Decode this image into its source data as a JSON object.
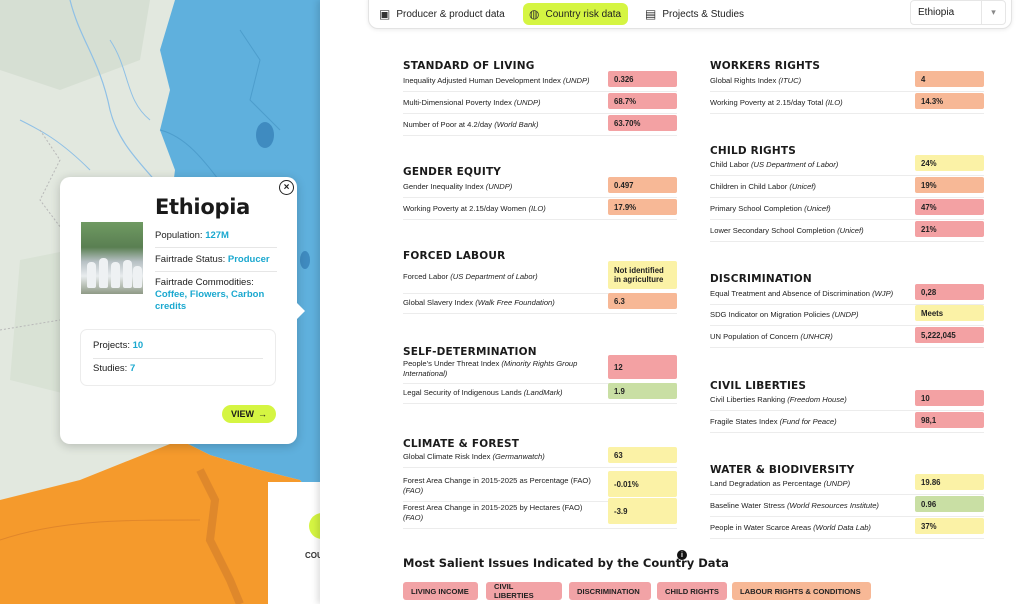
{
  "map": {
    "bottom_button_label": "COU"
  },
  "popup": {
    "country": "Ethiopia",
    "population_label": "Population:",
    "population_value": "127M",
    "status_label": "Fairtrade Status:",
    "status_value": "Producer",
    "commodities_label": "Fairtrade Commodities:",
    "commodities_value": "Coffee, Flowers, Carbon credits",
    "projects_label": "Projects:",
    "projects_value": "10",
    "studies_label": "Studies:",
    "studies_value": "7",
    "view_label": "VIEW",
    "close_icon": "close-icon"
  },
  "tabs": [
    {
      "label": "Producer & product data",
      "icon": "box-icon"
    },
    {
      "label": "Country risk data",
      "icon": "globe-icon",
      "active": true
    },
    {
      "label": "Projects & Studies",
      "icon": "clipboard-icon"
    }
  ],
  "country_select": {
    "value": "Ethiopia"
  },
  "left_sections": [
    {
      "title": "STANDARD OF LIVING",
      "rows": [
        {
          "label": "Inequality Adjusted Human Development Index",
          "source": "(UNDP)",
          "value": "0.326",
          "color": "red"
        },
        {
          "label": "Multi-Dimensional Poverty Index",
          "source": "(UNDP)",
          "value": "68.7%",
          "color": "red"
        },
        {
          "label": "Number of Poor at 4.2/day",
          "source": "(World Bank)",
          "value": "63.70%",
          "color": "red"
        }
      ]
    },
    {
      "title": "GENDER EQUITY",
      "rows": [
        {
          "label": "Gender Inequality Index",
          "source": "(UNDP)",
          "value": "0.497",
          "color": "orange"
        },
        {
          "label": "Working Poverty at 2.15/day Women",
          "source": "(ILO)",
          "value": "17.9%",
          "color": "orange"
        }
      ]
    },
    {
      "title": "FORCED LABOUR",
      "rows": [
        {
          "label": "Forced Labor",
          "source": "(US Department of Labor)",
          "value": "Not identified in agriculture",
          "color": "yellow"
        },
        {
          "label": "Global Slavery Index",
          "source": "(Walk Free Foundation)",
          "value": "6.3",
          "color": "orange"
        }
      ]
    },
    {
      "title": "SELF-DETERMINATION",
      "rows": [
        {
          "label": "People's Under Threat Index",
          "source": "(Minority Rights Group International)",
          "value": "12",
          "color": "red"
        },
        {
          "label": "Legal Security of Indigenous Lands",
          "source": "(LandMark)",
          "value": "1.9",
          "color": "green"
        }
      ]
    },
    {
      "title": "CLIMATE & FOREST",
      "rows": [
        {
          "label": "Global Climate Risk Index",
          "source": "(Germanwatch)",
          "value": "63",
          "color": "yellow"
        },
        {
          "label": "Forest Area Change in 2015-2025 as Percentage (FAO)",
          "source": "(FAO)",
          "value": "-0.01%",
          "color": "yellow"
        },
        {
          "label": "Forest Area Change in 2015-2025 by Hectares (FAO)",
          "source": "(FAO)",
          "value": "-3.9",
          "color": "yellow"
        }
      ]
    }
  ],
  "right_sections": [
    {
      "title": "WORKERS RIGHTS",
      "rows": [
        {
          "label": "Global Rights Index",
          "source": "(ITUC)",
          "value": "4",
          "color": "orange"
        },
        {
          "label": "Working Poverty at 2.15/day Total",
          "source": "(ILO)",
          "value": "14.3%",
          "color": "orange"
        }
      ]
    },
    {
      "title": "CHILD RIGHTS",
      "rows": [
        {
          "label": "Child Labor",
          "source": "(US Department of Labor)",
          "value": "24%",
          "color": "yellow"
        },
        {
          "label": "Children in Child Labor",
          "source": "(Unicef)",
          "value": "19%",
          "color": "orange"
        },
        {
          "label": "Primary School Completion",
          "source": "(Unicef)",
          "value": "47%",
          "color": "red"
        },
        {
          "label": "Lower Secondary School Completion",
          "source": "(Unicef)",
          "value": "21%",
          "color": "red"
        }
      ]
    },
    {
      "title": "DISCRIMINATION",
      "rows": [
        {
          "label": "Equal Treatment and Absence of Discrimination",
          "source": "(WJP)",
          "value": "0,28",
          "color": "red"
        },
        {
          "label": "SDG Indicator on Migration Policies",
          "source": "(UNDP)",
          "value": "Meets",
          "color": "yellow"
        },
        {
          "label": "UN Population of Concern",
          "source": "(UNHCR)",
          "value": "5,222,045",
          "color": "red"
        }
      ]
    },
    {
      "title": "CIVIL LIBERTIES",
      "rows": [
        {
          "label": "Civil Liberties Ranking",
          "source": "(Freedom House)",
          "value": "10",
          "color": "red"
        },
        {
          "label": "Fragile States Index",
          "source": "(Fund for Peace)",
          "value": "98,1",
          "color": "red"
        }
      ]
    },
    {
      "title": "WATER & BIODIVERSITY",
      "rows": [
        {
          "label": "Land Degradation as Percentage",
          "source": "(UNDP)",
          "value": "19.86",
          "color": "yellow"
        },
        {
          "label": "Baseline Water Stress",
          "source": "(World Resources Institute)",
          "value": "0.96",
          "color": "green"
        },
        {
          "label": "People in Water Scarce Areas",
          "source": "(World Data Lab)",
          "value": "37%",
          "color": "yellow"
        }
      ]
    }
  ],
  "salient": {
    "title": "Most Salient Issues Indicated by the Country Data",
    "info_icon": "info-icon",
    "tags": [
      {
        "label": "LIVING INCOME",
        "color": "red"
      },
      {
        "label": "CIVIL LIBERTIES",
        "color": "red"
      },
      {
        "label": "DISCRIMINATION",
        "color": "red"
      },
      {
        "label": "CHILD RIGHTS",
        "color": "red"
      },
      {
        "label": "LABOUR RIGHTS & CONDITIONS",
        "color": "orange"
      }
    ]
  },
  "colors": {
    "accent": "#d5f542",
    "link": "#1aa8cf",
    "red": "#f3a1a3",
    "orange": "#f7b896",
    "yellow": "#fbf2a6",
    "green": "#c9dfa4",
    "map_water": "#5fb0dd",
    "map_orange": "#f59a2c"
  }
}
